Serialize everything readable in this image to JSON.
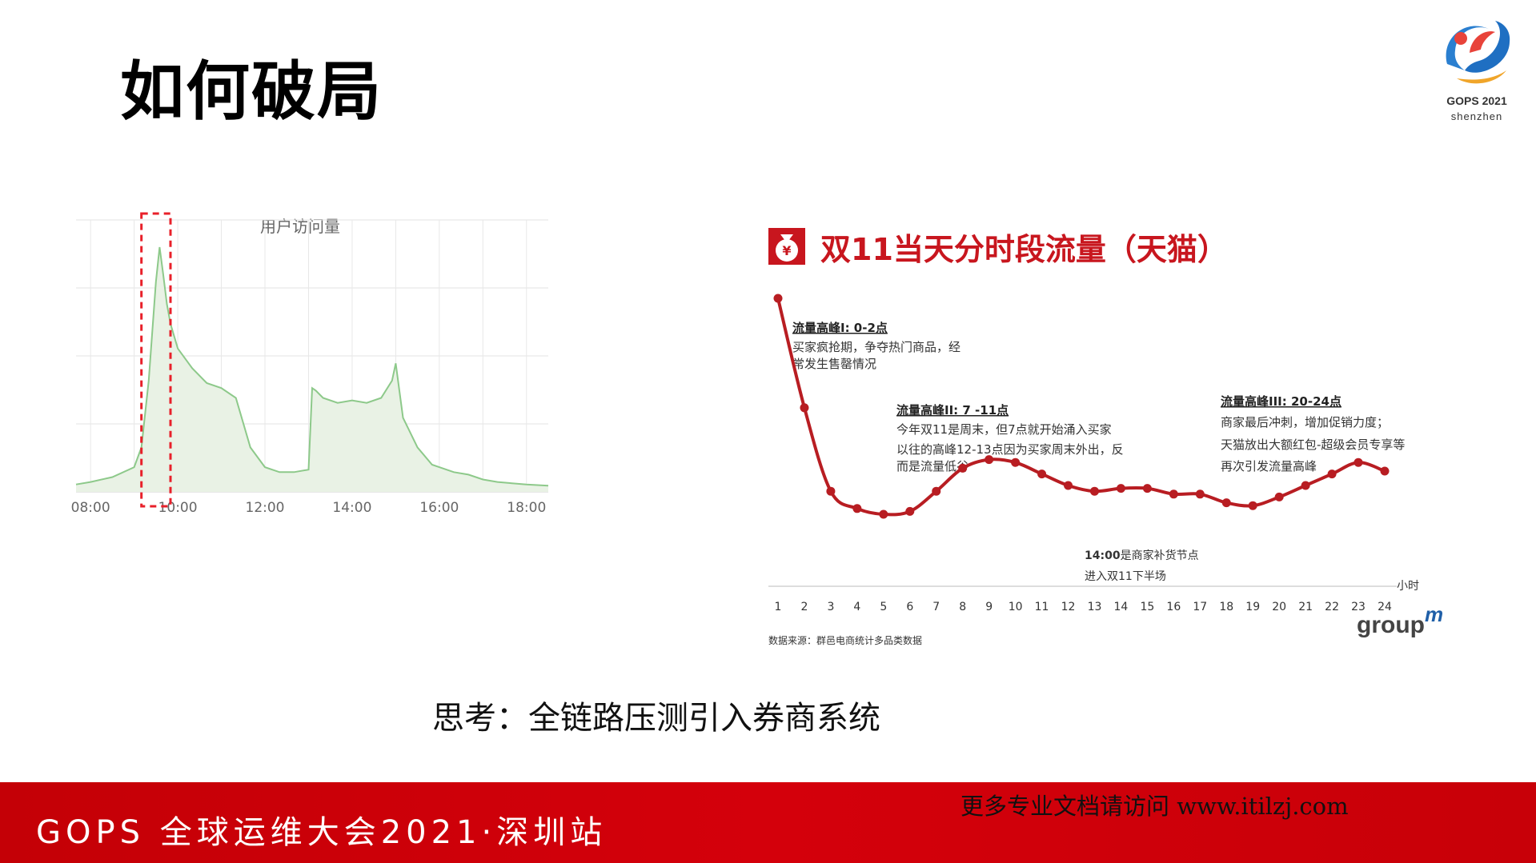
{
  "title": "如何破局",
  "logo": {
    "line1": "GOPS 2021",
    "line2": "shenzhen"
  },
  "left_chart": {
    "title": "用户访问量",
    "x_ticks": [
      "08:00",
      "10:00",
      "12:00",
      "14:00",
      "16:00",
      "18:00"
    ],
    "highlight_window": "09:10-09:50",
    "chart_data": {
      "type": "area",
      "title": "用户访问量",
      "xlabel": "",
      "ylabel": "",
      "x_ticks": [
        "08:00",
        "10:00",
        "12:00",
        "14:00",
        "16:00",
        "18:00"
      ],
      "x": [
        "07:40",
        "08:00",
        "08:30",
        "09:00",
        "09:10",
        "09:20",
        "09:30",
        "09:35",
        "09:40",
        "09:45",
        "09:50",
        "10:00",
        "10:20",
        "10:40",
        "11:00",
        "11:20",
        "11:40",
        "12:00",
        "12:20",
        "12:40",
        "13:00",
        "13:05",
        "13:10",
        "13:20",
        "13:40",
        "14:00",
        "14:20",
        "14:40",
        "14:55",
        "15:00",
        "15:10",
        "15:30",
        "15:50",
        "16:00",
        "16:20",
        "16:40",
        "17:00",
        "17:20",
        "17:40",
        "18:00",
        "18:30"
      ],
      "values": [
        3,
        4,
        6,
        10,
        18,
        45,
        85,
        99,
        88,
        76,
        68,
        58,
        50,
        44,
        42,
        38,
        18,
        10,
        8,
        8,
        9,
        42,
        41,
        38,
        36,
        37,
        36,
        38,
        45,
        52,
        30,
        18,
        11,
        10,
        8,
        7,
        5,
        4,
        3.5,
        3,
        2.5
      ],
      "ylim": [
        0,
        110
      ],
      "grid": true,
      "accent_color": "#8dc98a",
      "fill_color": "#e9f2e5",
      "highlight_color": "#e8202a"
    }
  },
  "right_chart": {
    "title": "双11当天分时段流量（天猫）",
    "icon": "money-bag-icon",
    "annotations": [
      {
        "heading": "流量高峰I: 0-2点",
        "lines": [
          "买家疯抢期，争夺热门商品，经",
          "常发生售罄情况"
        ]
      },
      {
        "heading": "流量高峰II: 7 -11点",
        "lines": [
          "今年双11是周末，但7点就开始涌入买家",
          "以往的高峰12-13点因为买家周末外出，反",
          "而是流量低谷"
        ]
      },
      {
        "heading": "流量高峰III: 20-24点",
        "lines": [
          "商家最后冲刺，增加促销力度；",
          "天猫放出大额红包-超级会员专享等",
          "再次引发流量高峰"
        ]
      },
      {
        "heading": "14:00",
        "lines": [
          "是商家补货节点",
          "进入双11下半场"
        ]
      }
    ],
    "x_unit": "小时",
    "source": "数据来源：群邑电商统计多品类数据",
    "brand": "group",
    "brand_sup": "m",
    "chart_data": {
      "type": "line",
      "title": "双11当天分时段流量（天猫）",
      "xlabel": "小时",
      "ylabel": "",
      "x": [
        1,
        2,
        3,
        4,
        5,
        6,
        7,
        8,
        9,
        10,
        11,
        12,
        13,
        14,
        15,
        16,
        17,
        18,
        19,
        20,
        21,
        22,
        23,
        24
      ],
      "values": [
        100,
        62,
        33,
        27,
        25,
        26,
        33,
        41,
        44,
        43,
        39,
        35,
        33,
        34,
        34,
        32,
        32,
        29,
        28,
        31,
        35,
        39,
        43,
        40
      ],
      "ylim": [
        0,
        105
      ],
      "grid": false,
      "line_color": "#b81d22"
    }
  },
  "think_text": "思考：全链路压测引入券商系统",
  "footer": {
    "left": "GOPS 全球运维大会2021·深圳站",
    "right": "更多专业文档请访问 www.itilzj.com"
  }
}
